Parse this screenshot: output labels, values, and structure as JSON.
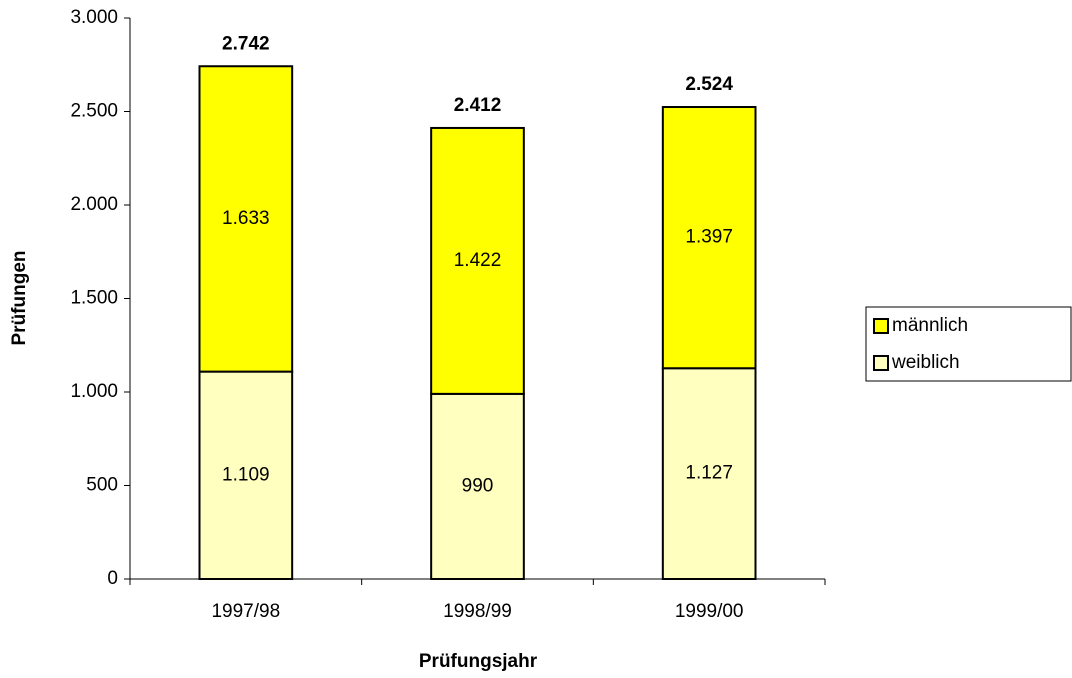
{
  "chart_data": {
    "type": "stacked_bar",
    "x_label": "Prüfungsjahr",
    "y_label": "Prüfungen",
    "categories": [
      "1997/98",
      "1998/99",
      "1999/00"
    ],
    "series": [
      {
        "name": "weiblich",
        "color": "#ffffc0",
        "values": [
          1109,
          990,
          1127
        ],
        "value_labels": [
          "1.109",
          "990",
          "1.127"
        ]
      },
      {
        "name": "männlich",
        "color": "#ffff00",
        "values": [
          1633,
          1422,
          1397
        ],
        "value_labels": [
          "1.633",
          "1.422",
          "1.397"
        ]
      }
    ],
    "totals": {
      "values": [
        2742,
        2412,
        2524
      ],
      "value_labels": [
        "2.742",
        "2.412",
        "2.524"
      ]
    },
    "ylim": [
      0,
      3000
    ],
    "yticks": [
      0,
      500,
      {
        "value": 1000,
        "label": "1.000"
      },
      {
        "value": 1500,
        "label": "1.500"
      },
      {
        "value": 2000,
        "label": "2.000"
      },
      {
        "value": 2500,
        "label": "2.500"
      },
      {
        "value": 3000,
        "label": "3.000"
      }
    ],
    "grid": false,
    "legend": "right"
  }
}
